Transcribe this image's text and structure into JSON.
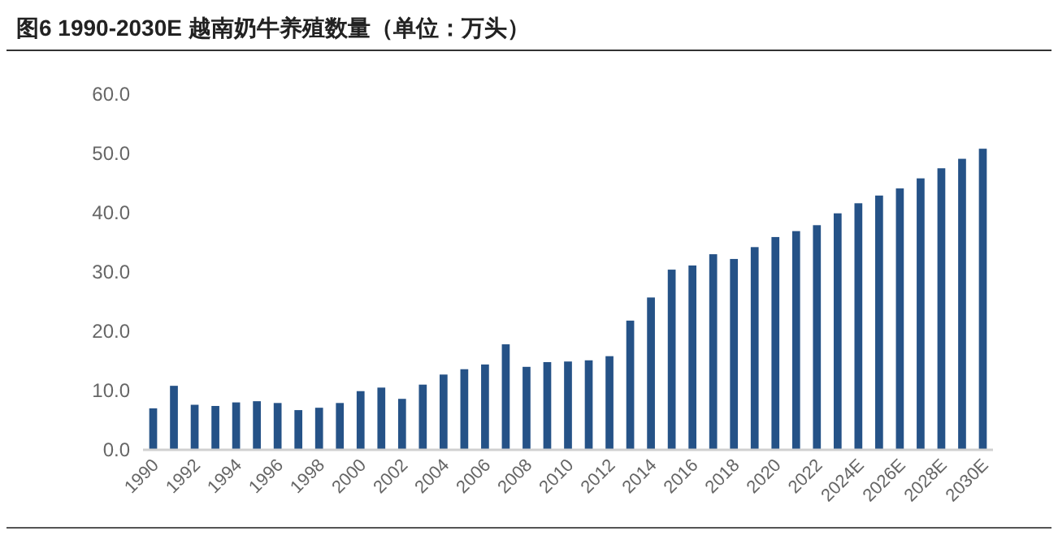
{
  "chart_data": {
    "type": "bar",
    "title": "图6  1990-2030E 越南奶牛养殖数量（单位：万头）",
    "categories": [
      "1990",
      null,
      "1992",
      null,
      "1994",
      null,
      "1996",
      null,
      "1998",
      null,
      "2000",
      null,
      "2002",
      null,
      "2004",
      null,
      "2006",
      null,
      "2008",
      null,
      "2010",
      null,
      "2012",
      null,
      "2014",
      null,
      "2016",
      null,
      "2018",
      null,
      "2020",
      null,
      "2022",
      null,
      "2024E",
      null,
      "2026E",
      null,
      "2028E",
      null,
      "2030E"
    ],
    "values": [
      7.0,
      10.8,
      7.6,
      7.4,
      8.0,
      8.2,
      7.9,
      6.7,
      7.1,
      7.9,
      9.9,
      10.5,
      8.6,
      11.0,
      12.7,
      13.6,
      14.4,
      17.8,
      14.0,
      14.8,
      14.9,
      15.1,
      15.8,
      21.8,
      25.7,
      30.4,
      31.1,
      33.0,
      32.2,
      34.2,
      35.9,
      36.9,
      37.9,
      39.9,
      41.6,
      42.9,
      44.1,
      45.8,
      47.5,
      49.1,
      50.8
    ],
    "color": "#255287",
    "ylim": [
      0,
      60
    ],
    "yticks": [
      {
        "value": 0,
        "label": "0.0"
      },
      {
        "value": 10,
        "label": "10.0"
      },
      {
        "value": 20,
        "label": "20.0"
      },
      {
        "value": 30,
        "label": "30.0"
      },
      {
        "value": 40,
        "label": "40.0"
      },
      {
        "value": 50,
        "label": "50.0"
      },
      {
        "value": 60,
        "label": "60.0"
      }
    ],
    "grid": false
  }
}
